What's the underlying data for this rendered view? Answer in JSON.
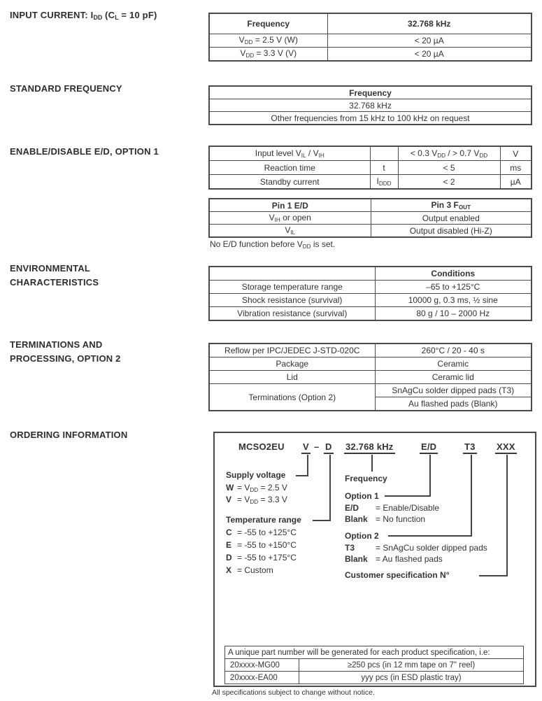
{
  "footer": "All specifications subject to change without notice.",
  "sections": {
    "input_current": {
      "heading": "INPUT CURRENT: I~DD~ (C~L~ = 10 pF)",
      "table": {
        "header": [
          "Frequency",
          "32.768 kHz"
        ],
        "rows": [
          [
            "V~DD~ = 2.5 V (W)",
            "< 20 µA"
          ],
          [
            "V~DD~ = 3.3 V (V)",
            "< 20 µA"
          ]
        ]
      }
    },
    "standard_frequency": {
      "heading": "STANDARD FREQUENCY",
      "table": {
        "header": "Frequency",
        "rows": [
          "32.768 kHz",
          "Other frequencies from 15 kHz to 100 kHz on request"
        ]
      }
    },
    "enable_disable": {
      "heading": "ENABLE/DISABLE E/D, OPTION 1",
      "spec_table": {
        "rows": [
          [
            "Input level V~IL~ / V~IH~",
            "",
            "< 0.3 V~DD~ / > 0.7 V~DD~",
            "V"
          ],
          [
            "Reaction time",
            "t",
            "< 5",
            "ms"
          ],
          [
            "Standby current",
            "I~DDD~",
            "< 2",
            "µA"
          ]
        ]
      },
      "pin_table": {
        "header": [
          "Pin 1 E/D",
          "Pin 3 F~OUT~"
        ],
        "rows": [
          [
            "V~IH~ or open",
            "Output enabled"
          ],
          [
            "V~IL~",
            "Output disabled (Hi-Z)"
          ]
        ]
      },
      "note": "No E/D function before V~DD~ is set."
    },
    "environmental": {
      "heading_line1": "ENVIRONMENTAL",
      "heading_line2": "CHARACTERISTICS",
      "table": {
        "header": [
          "",
          "Conditions"
        ],
        "rows": [
          [
            "Storage temperature range",
            "–65 to +125°C"
          ],
          [
            "Shock resistance (survival)",
            "10000 g, 0.3 ms, ½ sine"
          ],
          [
            "Vibration resistance (survival)",
            "80 g / 10 – 2000 Hz"
          ]
        ]
      }
    },
    "terminations": {
      "heading_line1": "TERMINATIONS AND",
      "heading_line2": "PROCESSING, OPTION 2",
      "table": {
        "rows": [
          [
            "Reflow per IPC/JEDEC J-STD-020C",
            "260°C / 20 - 40 s"
          ],
          [
            "Package",
            "Ceramic"
          ],
          [
            "Lid",
            "Ceramic lid"
          ]
        ],
        "terminations_label": "Terminations (Option 2)",
        "terminations_options": [
          "SnAgCu solder dipped pads (T3)",
          "Au flashed pads (Blank)"
        ]
      }
    },
    "ordering": {
      "heading": "ORDERING INFORMATION",
      "part_number": {
        "prefix": "MCSO2EU",
        "supply_code": "V",
        "dash": "–",
        "temp_code": "D",
        "frequency": "32.768 kHz",
        "option1_code": "E/D",
        "option2_code": "T3",
        "custom_code": "XXX"
      },
      "supply_voltage": {
        "title": "Supply voltage",
        "items": [
          {
            "key": "W",
            "value": "= V~DD~ = 2.5 V"
          },
          {
            "key": "V",
            "value": "= V~DD~ = 3.3 V"
          }
        ]
      },
      "temperature_range": {
        "title": "Temperature range",
        "items": [
          {
            "key": "C",
            "value": "= -55 to +125°C"
          },
          {
            "key": "E",
            "value": "= -55 to +150°C"
          },
          {
            "key": "D",
            "value": "= -55 to +175°C"
          },
          {
            "key": "X",
            "value": "= Custom"
          }
        ]
      },
      "frequency_label": "Frequency",
      "option1": {
        "title": "Option 1",
        "items": [
          {
            "key": "E/D",
            "value": "= Enable/Disable"
          },
          {
            "key": "Blank",
            "value": "= No function"
          }
        ]
      },
      "option2": {
        "title": "Option 2",
        "items": [
          {
            "key": "T3",
            "value": "= SnAgCu solder dipped pads"
          },
          {
            "key": "Blank",
            "value": "= Au flashed pads"
          }
        ]
      },
      "customer_spec_label": "Customer specification N°",
      "part_table": {
        "header": "A unique part number will be generated for each product specification, i.e:",
        "rows": [
          [
            "20xxxx-MG00",
            "≥250 pcs  (in 12 mm tape on 7\" reel)"
          ],
          [
            "20xxxx-EA00",
            "yyy pcs  (in ESD plastic tray)"
          ]
        ]
      }
    }
  }
}
